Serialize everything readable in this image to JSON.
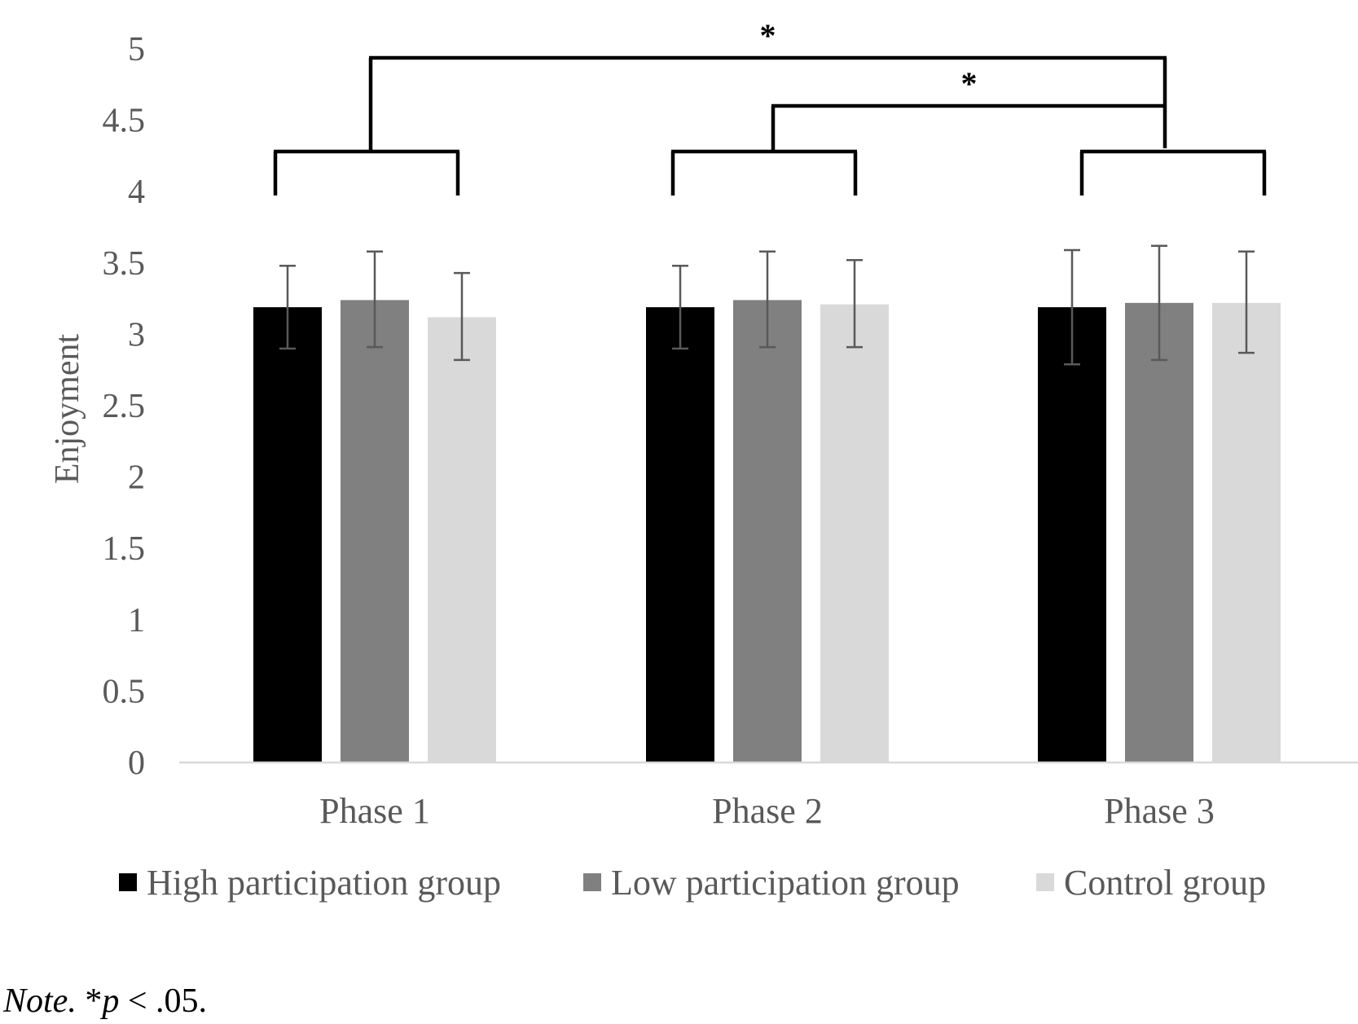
{
  "chart_data": {
    "type": "bar",
    "ylabel": "Enjoyment",
    "xlabel": "",
    "ylim": [
      0,
      5
    ],
    "y_ticks": [
      "0",
      "0.5",
      "1",
      "1.5",
      "2",
      "2.5",
      "3",
      "3.5",
      "4",
      "4.5",
      "5"
    ],
    "categories": [
      "Phase 1",
      "Phase 2",
      "Phase 3"
    ],
    "grid": false,
    "legend_position": "bottom",
    "series": [
      {
        "name": "High participation group",
        "color": "#000000",
        "values": [
          3.19,
          3.19,
          3.19
        ],
        "error_low": [
          2.9,
          2.9,
          2.79
        ],
        "error_high": [
          3.48,
          3.48,
          3.59
        ]
      },
      {
        "name": "Low participation group",
        "color": "#808080",
        "values": [
          3.24,
          3.24,
          3.22
        ],
        "error_low": [
          2.91,
          2.91,
          2.82
        ],
        "error_high": [
          3.58,
          3.58,
          3.62
        ]
      },
      {
        "name": "Control group",
        "color": "#d9d9d9",
        "values": [
          3.12,
          3.21,
          3.22
        ],
        "error_low": [
          2.82,
          2.91,
          2.87
        ],
        "error_high": [
          3.43,
          3.52,
          3.58
        ]
      }
    ],
    "annotations": [
      {
        "from": "Phase 1",
        "to": "Phase 3",
        "label": "*"
      },
      {
        "from": "Phase 2",
        "to": "Phase 3",
        "label": "*"
      }
    ]
  },
  "note": {
    "prefix": "Note.",
    "star": " *",
    "p": "p",
    "rest": " < .05."
  }
}
